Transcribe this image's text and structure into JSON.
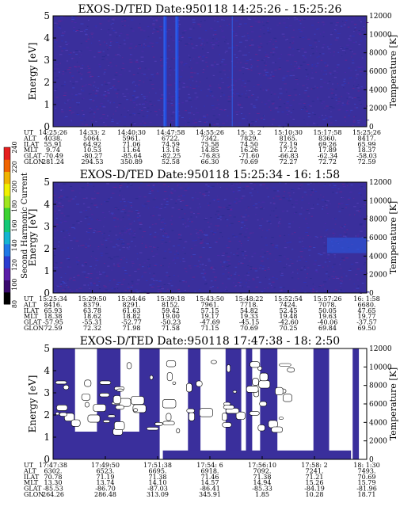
{
  "chart_data": [
    {
      "type": "heatmap",
      "title": "EXOS-D/TED   Date:950118  14:25:26 - 15:25:26",
      "ylabel": "Energy [eV]",
      "ylabel_right": "Temperature [K]",
      "ylim": [
        0,
        5
      ],
      "yticks": [
        "0",
        "1",
        "2",
        "3",
        "4",
        "5"
      ],
      "ylim_right": [
        0,
        12000
      ],
      "yticks_right": [
        "0",
        "2000",
        "4000",
        "6000",
        "8000",
        "10000",
        "12000"
      ],
      "grid": false,
      "row_labels": [
        "UT",
        "ALT",
        "ILAT",
        "MLT",
        "GLAT",
        "GLON"
      ],
      "columns": [
        [
          "14:25:26",
          "4038.",
          "55.91",
          "9.74",
          "-70.49",
          "281.24"
        ],
        [
          "14:33: 2",
          "5064.",
          "64.92",
          "10.53",
          "-80.27",
          "294.53"
        ],
        [
          "14:40:30",
          "5961.",
          "71.06",
          "11.64",
          "-85.64",
          "350.89"
        ],
        [
          "14:47:58",
          "6722.",
          "74.59",
          "13.16",
          "-82.25",
          "52.58"
        ],
        [
          "14:55:26",
          "7342.",
          "75.58",
          "14.85",
          "-76.83",
          "66.30"
        ],
        [
          "15: 3: 2",
          "7829.",
          "74.50",
          "16.26",
          "-71.60",
          "70.69"
        ],
        [
          "15:10:30",
          "8165.",
          "72.19",
          "17.22",
          "-66.83",
          "72.27"
        ],
        [
          "15:17:58",
          "8360.",
          "69.26",
          "17.89",
          "-62.34",
          "72.72"
        ],
        [
          "15:25:26",
          "8417.",
          "65.99",
          "18.37",
          "-58.03",
          "72.59"
        ]
      ]
    },
    {
      "type": "heatmap",
      "title": "EXOS-D/TED   Date:950118  15:25:34 - 16: 1:58",
      "ylabel": "Energy [eV]",
      "ylabel_right": "Temperature [K]",
      "ylim": [
        0,
        5
      ],
      "yticks": [
        "0",
        "1",
        "2",
        "3",
        "4",
        "5"
      ],
      "ylim_right": [
        0,
        12000
      ],
      "yticks_right": [
        "0",
        "2000",
        "4000",
        "6000",
        "8000",
        "10000",
        "12000"
      ],
      "grid": false,
      "row_labels": [
        "UT",
        "ALT",
        "ILAT",
        "MLT",
        "GLAT",
        "GLON"
      ],
      "columns": [
        [
          "15:25:34",
          "8416.",
          "65.93",
          "18.38",
          "-57.95",
          "72.59"
        ],
        [
          "15:29:50",
          "8379.",
          "63.78",
          "18.62",
          "-55.31",
          "72.32"
        ],
        [
          "15:34:46",
          "8291.",
          "61.63",
          "18.82",
          "-52.77",
          "71.98"
        ],
        [
          "15:39:18",
          "8152.",
          "59.42",
          "19.00",
          "-50.23",
          "71.58"
        ],
        [
          "15:43:50",
          "7961.",
          "57.15",
          "19.17",
          "-47.69",
          "71.15"
        ],
        [
          "15:48:22",
          "7718.",
          "54.82",
          "19.33",
          "-45.15",
          "70.69"
        ],
        [
          "15:52:54",
          "7424.",
          "52.45",
          "19.48",
          "-42.60",
          "70.25"
        ],
        [
          "15:57:26",
          "7078.",
          "50.05",
          "19.63",
          "-40.06",
          "69.84"
        ],
        [
          "16: 1:58",
          "6680.",
          "47.65",
          "19.77",
          "-37.57",
          "69.50"
        ]
      ]
    },
    {
      "type": "heatmap",
      "title": "EXOS-D/TED   Date:950118  17:47:38 - 18: 2:50",
      "ylabel": "Energy [eV]",
      "ylabel_right": "Temperature [K]",
      "ylim": [
        0,
        5
      ],
      "yticks": [
        "0",
        "1",
        "2",
        "3",
        "4",
        "5"
      ],
      "ylim_right": [
        0,
        12000
      ],
      "yticks_right": [
        "0",
        "2000",
        "4000",
        "6000",
        "8000",
        "10000",
        "12000"
      ],
      "grid": false,
      "row_labels": [
        "UT",
        "ALT",
        "ILAT",
        "MLT",
        "GLAT",
        "GLON"
      ],
      "columns": [
        [
          "17:47:38",
          "6302.",
          "70.78",
          "13.30",
          "-85.53",
          "264.26"
        ],
        [
          "17:49:50",
          "6523.",
          "71.19",
          "13.74",
          "-86.70",
          "286.48"
        ],
        [
          "17:51:38",
          "6695.",
          "71.38",
          "14.10",
          "-87.03",
          "313.09"
        ],
        [
          "17:54: 6",
          "6918.",
          "71.46",
          "14.57",
          "-86.41",
          "345.91"
        ],
        [
          "17:56:10",
          "7092.",
          "71.38",
          "14.94",
          "-85.33",
          "1.85"
        ],
        [
          "17:58: 2",
          "7241.",
          "71.21",
          "15.26",
          "-84.19",
          "10.28"
        ],
        [
          "18: 1:30",
          "7493.",
          "70.69",
          "15.79",
          "-81.96",
          "18.71"
        ]
      ]
    }
  ],
  "colorbar": {
    "label": "Second Harmonic Current",
    "ticks": [
      "80",
      "100",
      "120",
      "140",
      "160",
      "180",
      "200",
      "220",
      "240"
    ],
    "colors": [
      "#000000",
      "#3a0a6e",
      "#5a1ea8",
      "#2a3cd0",
      "#1e78e6",
      "#14b4d2",
      "#14c878",
      "#3cd232",
      "#a0e61e",
      "#f0f000",
      "#f0b400",
      "#f06400",
      "#e61e1e"
    ]
  }
}
